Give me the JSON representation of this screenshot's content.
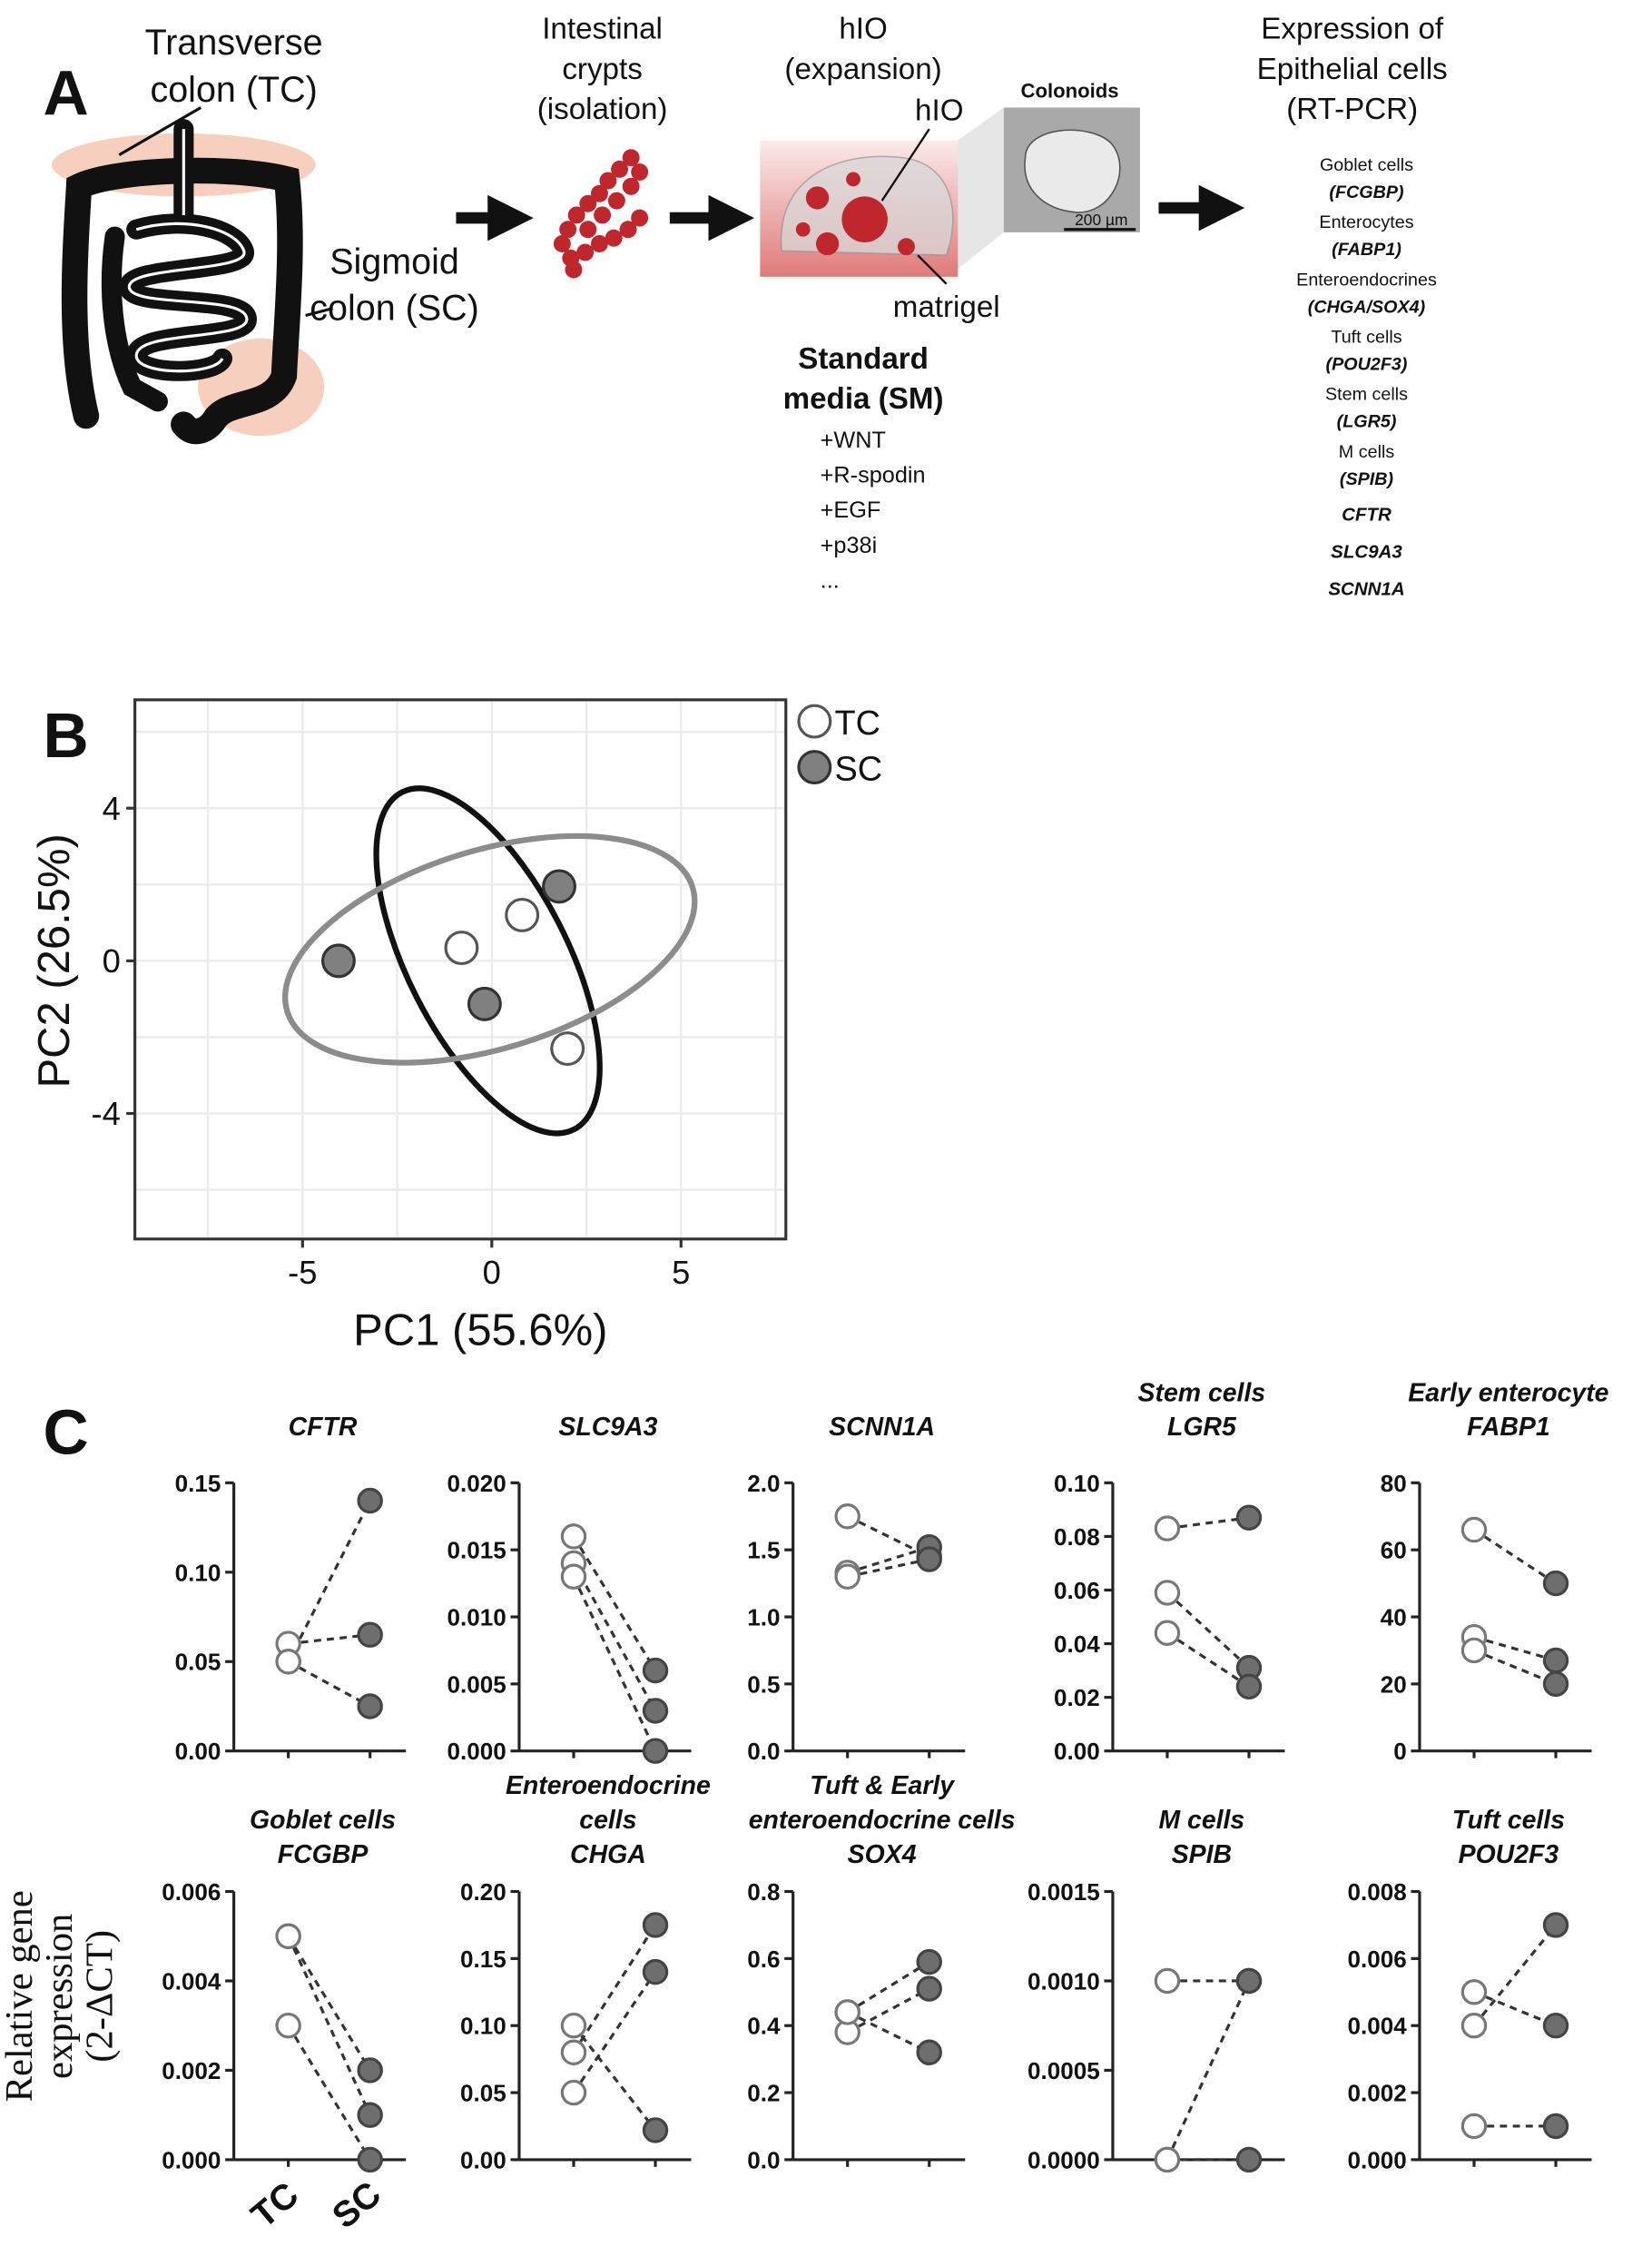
{
  "panel_labels": [
    "A",
    "B",
    "C"
  ],
  "diagram": {
    "colon": {
      "tc_label": [
        "Transverse",
        "colon (TC)"
      ],
      "sc_label": [
        "Sigmoid",
        "colon (SC)"
      ]
    },
    "crypts": [
      "Intestinal",
      "crypts",
      "(isolation)"
    ],
    "hio": {
      "title": [
        "hIO",
        "(expansion)"
      ],
      "label": "hIO",
      "colonoids": "Colonoids",
      "scale": "200 µm",
      "matrigel": "matrigel",
      "media": [
        "Standard",
        "media (SM)"
      ],
      "supplements": [
        "+WNT",
        "+R-spodin",
        "+EGF",
        "+p38i",
        "..."
      ]
    },
    "expression": {
      "title": [
        "Expression of",
        "Epithelial cells",
        "(RT-PCR)"
      ],
      "markers": [
        {
          "cell": "Goblet cells",
          "gene": "(FCGBP)"
        },
        {
          "cell": "Enterocytes",
          "gene": "(FABP1)"
        },
        {
          "cell": "Enteroendocrines",
          "gene": "(CHGA/SOX4)"
        },
        {
          "cell": "Tuft cells",
          "gene": "(POU2F3)"
        },
        {
          "cell": "Stem cells",
          "gene": "(LGR5)"
        },
        {
          "cell": "M cells",
          "gene": "(SPIB)"
        }
      ],
      "genes": [
        "CFTR",
        "SLC9A3",
        "SCNN1A"
      ]
    }
  },
  "panel_c_axis": {
    "ylabel": [
      "Relative gene",
      "expression",
      "(2-ΔCT)"
    ],
    "categories": [
      "TC",
      "SC"
    ]
  },
  "chart_data": [
    {
      "type": "scatter",
      "xlabel": "PC1 (55.6%)",
      "ylabel": "PC2 (26.5%)",
      "xlim": [
        -9.43,
        7.77
      ],
      "ylim": [
        -7.29,
        6.84
      ],
      "xticks": [
        -5,
        0,
        5
      ],
      "yticks": [
        -4,
        0,
        4
      ],
      "xgrid": [
        -7.5,
        -5,
        -2.5,
        0,
        2.5,
        5,
        7.5
      ],
      "ygrid": [
        -6,
        -4,
        -2,
        0,
        2,
        4,
        6
      ],
      "legend": "right",
      "series": [
        {
          "name": "TC",
          "color": "#ffffff",
          "edge": "#555555",
          "x": [
            -0.8,
            0.8,
            2.0
          ],
          "values": [
            0.34,
            1.2,
            -2.3
          ],
          "ellipse": {
            "cx": -0.1,
            "cy": 0,
            "rx": 5.0,
            "ry": 2.1,
            "angle": -63,
            "color": "#111111"
          }
        },
        {
          "name": "SC",
          "color": "#808080",
          "edge": "#333333",
          "x": [
            -4.05,
            1.78,
            -0.19
          ],
          "values": [
            0,
            1.95,
            -1.13
          ],
          "ellipse": {
            "cx": -0.05,
            "cy": 0.3,
            "rx": 5.6,
            "ry": 2.6,
            "angle": 17,
            "color": "#8c8c8c"
          }
        }
      ]
    },
    {
      "type": "paired",
      "title": [
        "CFTR"
      ],
      "ylim": [
        0,
        0.15
      ],
      "yticks": [
        {
          "value": 0,
          "label": "0.00"
        },
        {
          "value": 0.05,
          "label": "0.05"
        },
        {
          "value": 0.1,
          "label": "0.10"
        },
        {
          "value": 0.15,
          "label": "0.15"
        }
      ],
      "colors": [
        "#ffffff",
        "#6e6e6e"
      ],
      "series": [
        {
          "values": [
            0.05,
            0.14
          ]
        },
        {
          "values": [
            0.06,
            0.065
          ]
        },
        {
          "values": [
            0.05,
            0.025
          ]
        }
      ]
    },
    {
      "type": "paired",
      "title": [
        "SLC9A3"
      ],
      "ylim": [
        0,
        0.02
      ],
      "yticks": [
        {
          "value": 0,
          "label": "0.000"
        },
        {
          "value": 0.005,
          "label": "0.005"
        },
        {
          "value": 0.01,
          "label": "0.010"
        },
        {
          "value": 0.015,
          "label": "0.015"
        },
        {
          "value": 0.02,
          "label": "0.020"
        }
      ],
      "colors": [
        "#ffffff",
        "#6e6e6e"
      ],
      "series": [
        {
          "values": [
            0.016,
            0.006
          ]
        },
        {
          "values": [
            0.014,
            0.003
          ]
        },
        {
          "values": [
            0.013,
            0
          ]
        }
      ]
    },
    {
      "type": "paired",
      "title": [
        "SCNN1A"
      ],
      "ylim": [
        0,
        2
      ],
      "yticks": [
        {
          "value": 0,
          "label": "0.0"
        },
        {
          "value": 0.5,
          "label": "0.5"
        },
        {
          "value": 1,
          "label": "1.0"
        },
        {
          "value": 1.5,
          "label": "1.5"
        },
        {
          "value": 2,
          "label": "2.0"
        }
      ],
      "colors": [
        "#ffffff",
        "#6e6e6e"
      ],
      "series": [
        {
          "values": [
            1.75,
            1.45
          ]
        },
        {
          "values": [
            1.33,
            1.52
          ]
        },
        {
          "values": [
            1.3,
            1.43
          ]
        }
      ]
    },
    {
      "type": "paired",
      "title": [
        "Stem  cells",
        "LGR5"
      ],
      "ylim": [
        0,
        0.1
      ],
      "yticks": [
        {
          "value": 0,
          "label": "0.00"
        },
        {
          "value": 0.02,
          "label": "0.02"
        },
        {
          "value": 0.04,
          "label": "0.04"
        },
        {
          "value": 0.06,
          "label": "0.06"
        },
        {
          "value": 0.08,
          "label": "0.08"
        },
        {
          "value": 0.1,
          "label": "0.10"
        }
      ],
      "colors": [
        "#ffffff",
        "#6e6e6e"
      ],
      "series": [
        {
          "values": [
            0.083,
            0.087
          ]
        },
        {
          "values": [
            0.059,
            0.031
          ]
        },
        {
          "values": [
            0.044,
            0.024
          ]
        }
      ]
    },
    {
      "type": "paired",
      "title": [
        "Early enterocyte",
        "FABP1"
      ],
      "ylim": [
        0,
        80
      ],
      "yticks": [
        0,
        20,
        40,
        60,
        80
      ],
      "colors": [
        "#ffffff",
        "#6e6e6e"
      ],
      "series": [
        {
          "values": [
            66,
            50
          ]
        },
        {
          "values": [
            34,
            27
          ]
        },
        {
          "values": [
            30,
            20
          ]
        }
      ]
    },
    {
      "type": "paired",
      "title": [
        "Goblet cells",
        "FCGBP"
      ],
      "ylim": [
        0,
        0.006
      ],
      "yticks": [
        {
          "value": 0,
          "label": "0.000"
        },
        {
          "value": 0.002,
          "label": "0.002"
        },
        {
          "value": 0.004,
          "label": "0.004"
        },
        {
          "value": 0.006,
          "label": "0.006"
        }
      ],
      "colors": [
        "#ffffff",
        "#6e6e6e"
      ],
      "series": [
        {
          "values": [
            0.005,
            0.002
          ]
        },
        {
          "values": [
            0.005,
            0.001
          ]
        },
        {
          "values": [
            0.003,
            0
          ]
        }
      ]
    },
    {
      "type": "paired",
      "title": [
        "Enteroendocrine",
        "cells",
        "CHGA"
      ],
      "ylim": [
        0,
        0.2
      ],
      "yticks": [
        {
          "value": 0,
          "label": "0.00"
        },
        {
          "value": 0.05,
          "label": "0.05"
        },
        {
          "value": 0.1,
          "label": "0.10"
        },
        {
          "value": 0.15,
          "label": "0.15"
        },
        {
          "value": 0.2,
          "label": "0.20"
        }
      ],
      "colors": [
        "#ffffff",
        "#6e6e6e"
      ],
      "series": [
        {
          "values": [
            0.08,
            0.175
          ]
        },
        {
          "values": [
            0.05,
            0.14
          ]
        },
        {
          "values": [
            0.1,
            0.022
          ]
        }
      ]
    },
    {
      "type": "paired",
      "title": [
        "Tuft & Early",
        "enteroendocrine cells",
        "SOX4"
      ],
      "ylim": [
        0,
        0.8
      ],
      "yticks": [
        {
          "value": 0,
          "label": "0.0"
        },
        {
          "value": 0.2,
          "label": "0.2"
        },
        {
          "value": 0.4,
          "label": "0.4"
        },
        {
          "value": 0.6,
          "label": "0.6"
        },
        {
          "value": 0.8,
          "label": "0.8"
        }
      ],
      "colors": [
        "#ffffff",
        "#6e6e6e"
      ],
      "series": [
        {
          "values": [
            0.44,
            0.59
          ]
        },
        {
          "values": [
            0.38,
            0.51
          ]
        },
        {
          "values": [
            0.44,
            0.32
          ]
        }
      ]
    },
    {
      "type": "paired",
      "title": [
        "M cells",
        "SPIB"
      ],
      "ylim": [
        0,
        0.0015
      ],
      "yticks": [
        {
          "value": 0,
          "label": "0.0000"
        },
        {
          "value": 0.0005,
          "label": "0.0005"
        },
        {
          "value": 0.001,
          "label": "0.0010"
        },
        {
          "value": 0.0015,
          "label": "0.0015"
        }
      ],
      "colors": [
        "#ffffff",
        "#6e6e6e"
      ],
      "series": [
        {
          "values": [
            0.001,
            0.001
          ]
        },
        {
          "values": [
            0,
            0.001
          ]
        },
        {
          "values": [
            0,
            0
          ]
        }
      ]
    },
    {
      "type": "paired",
      "title": [
        "Tuft cells",
        "POU2F3"
      ],
      "ylim": [
        0,
        0.008
      ],
      "yticks": [
        {
          "value": 0,
          "label": "0.000"
        },
        {
          "value": 0.002,
          "label": "0.002"
        },
        {
          "value": 0.004,
          "label": "0.004"
        },
        {
          "value": 0.006,
          "label": "0.006"
        },
        {
          "value": 0.008,
          "label": "0.008"
        }
      ],
      "colors": [
        "#ffffff",
        "#6e6e6e"
      ],
      "series": [
        {
          "values": [
            0.004,
            0.007
          ]
        },
        {
          "values": [
            0.005,
            0.004
          ]
        },
        {
          "values": [
            0.001,
            0.001
          ]
        }
      ]
    }
  ]
}
